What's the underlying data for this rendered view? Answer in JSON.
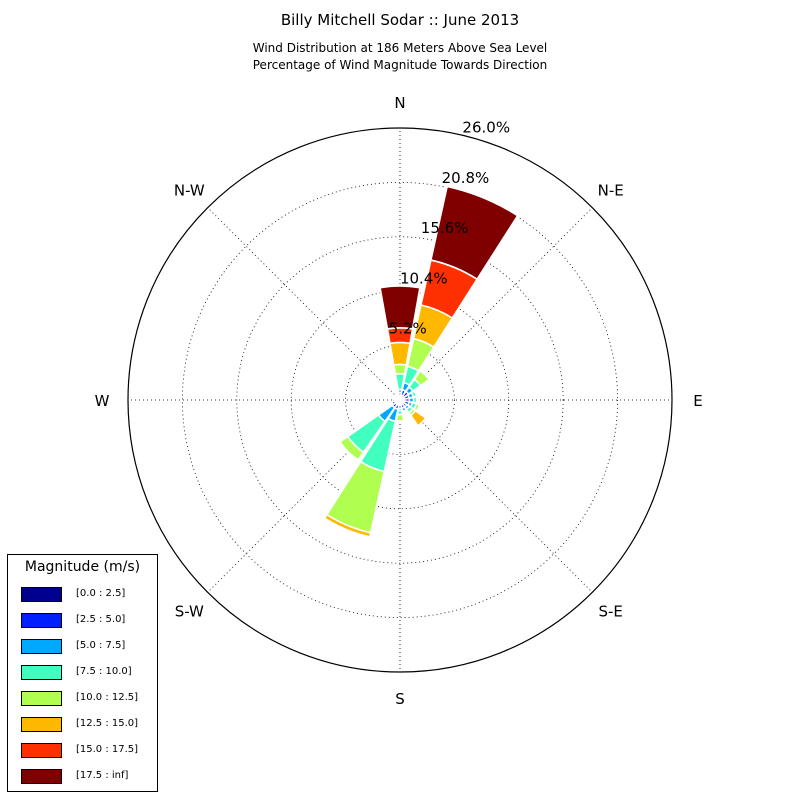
{
  "title": "Billy Mitchell Sodar :: June 2013",
  "subtitle_lines": [
    "Wind Distribution at 186 Meters Above Sea Level",
    "Percentage of Wind Magnitude Towards Direction"
  ],
  "legend": {
    "title": "Magnitude (m/s)",
    "placement": "lower-left"
  },
  "chart_data": {
    "type": "windrose",
    "title": "Billy Mitchell Sodar :: June 2013",
    "subtitle": "Wind Distribution at 186 Meters Above Sea Level / Percentage of Wind Magnitude Towards Direction",
    "direction_labels": [
      "N",
      "N-E",
      "E",
      "S-E",
      "S",
      "S-W",
      "W",
      "N-W"
    ],
    "radial_ticks": [
      5.2,
      10.4,
      15.6,
      20.8,
      26.0
    ],
    "radial_tick_labels": [
      "5.2%",
      "10.4%",
      "15.6%",
      "20.8%",
      "26.0%"
    ],
    "rmax": 26.0,
    "grid": true,
    "bin_labels": [
      "[0.0 : 2.5]",
      "[2.5 : 5.0]",
      "[5.0 : 7.5]",
      "[7.5 : 10.0]",
      "[10.0 : 12.5]",
      "[12.5 : 15.0]",
      "[15.0 : 17.5]",
      "[17.5 : inf]"
    ],
    "bin_colors": [
      "#00008f",
      "#0020ff",
      "#00a8ff",
      "#40ffbf",
      "#b0ff50",
      "#ffb800",
      "#ff3000",
      "#800000"
    ],
    "sector_width_deg": 22.5,
    "sectors": [
      {
        "dir": 0,
        "cumulative": [
          0.3,
          0.7,
          1.0,
          2.5,
          3.4,
          5.5,
          6.9,
          10.9
        ]
      },
      {
        "dir": 22.5,
        "cumulative": [
          0.4,
          1.0,
          1.7,
          3.3,
          6.0,
          9.3,
          13.7,
          20.9
        ]
      },
      {
        "dir": 45,
        "cumulative": [
          0.4,
          1.0,
          1.5,
          2.4,
          3.4,
          3.5,
          3.6,
          3.7
        ]
      },
      {
        "dir": 67.5,
        "cumulative": [
          0.4,
          0.9,
          1.3,
          1.6,
          1.6,
          1.6,
          1.6,
          1.6
        ]
      },
      {
        "dir": 90,
        "cumulative": [
          0.4,
          0.9,
          1.3,
          1.6,
          1.6,
          1.6,
          1.6,
          1.6
        ]
      },
      {
        "dir": 112.5,
        "cumulative": [
          0.4,
          0.9,
          1.2,
          1.6,
          1.9,
          1.9,
          1.9,
          1.9
        ]
      },
      {
        "dir": 135,
        "cumulative": [
          0.4,
          0.8,
          1.1,
          1.5,
          1.8,
          3.0,
          3.0,
          3.0
        ]
      },
      {
        "dir": 157.5,
        "cumulative": [
          0.4,
          0.8,
          1.1,
          1.2,
          1.3,
          1.3,
          1.3,
          1.3
        ]
      },
      {
        "dir": 180,
        "cumulative": [
          0.5,
          0.8,
          1.0,
          1.4,
          2.0,
          2.0,
          2.0,
          2.0
        ]
      },
      {
        "dir": 202.5,
        "cumulative": [
          0.5,
          0.9,
          2.1,
          7.0,
          13.0,
          13.4,
          13.4,
          13.4
        ]
      },
      {
        "dir": 225,
        "cumulative": [
          0.5,
          0.9,
          2.5,
          6.1,
          7.0,
          7.0,
          7.0,
          7.0
        ]
      },
      {
        "dir": 247.5,
        "cumulative": [
          0.5,
          0.8,
          0.9,
          0.9,
          0.9,
          0.9,
          0.9,
          0.9
        ]
      },
      {
        "dir": 270,
        "cumulative": [
          0.5,
          0.7,
          0.7,
          0.7,
          0.7,
          0.7,
          0.7,
          0.7
        ]
      },
      {
        "dir": 292.5,
        "cumulative": [
          0.3,
          0.4,
          0.4,
          0.4,
          0.4,
          0.4,
          0.4,
          0.4
        ]
      },
      {
        "dir": 315,
        "cumulative": [
          0.3,
          0.4,
          0.4,
          0.4,
          0.4,
          0.4,
          0.4,
          0.4
        ]
      },
      {
        "dir": 337.5,
        "cumulative": [
          0.3,
          0.4,
          0.4,
          0.4,
          0.4,
          0.4,
          0.4,
          0.4
        ]
      }
    ]
  }
}
